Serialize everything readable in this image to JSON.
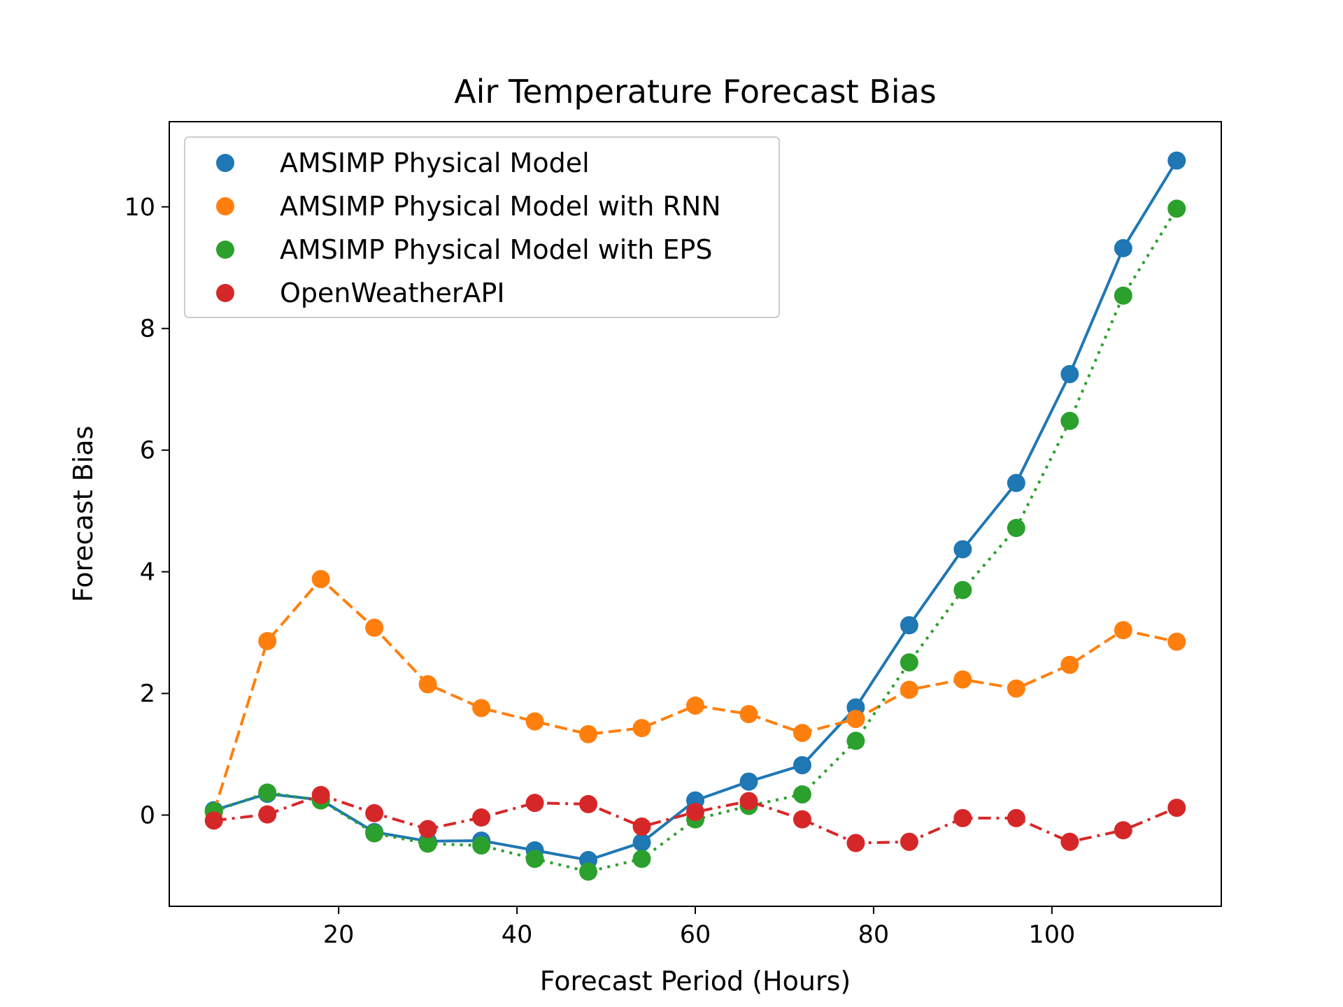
{
  "chart_data": {
    "type": "line",
    "title": "Air Temperature Forecast Bias",
    "xlabel": "Forecast Period (Hours)",
    "ylabel": "Forecast Bias",
    "xlim": [
      1,
      119
    ],
    "ylim": [
      -1.5,
      11.4
    ],
    "xticks": [
      20,
      40,
      60,
      80,
      100
    ],
    "yticks": [
      0,
      2,
      4,
      6,
      8,
      10
    ],
    "grid": false,
    "legend_position": "top-left",
    "x": [
      6,
      12,
      18,
      24,
      30,
      36,
      42,
      48,
      54,
      60,
      66,
      72,
      78,
      84,
      90,
      96,
      102,
      108,
      114
    ],
    "series": [
      {
        "name": "AMSIMP Physical Model",
        "color": "#1f77b4",
        "line_style": "solid",
        "values": [
          0.08,
          0.35,
          0.25,
          -0.28,
          -0.43,
          -0.42,
          -0.58,
          -0.74,
          -0.45,
          0.24,
          0.55,
          0.82,
          1.77,
          3.12,
          4.37,
          5.46,
          7.25,
          9.32,
          10.76
        ]
      },
      {
        "name": "AMSIMP Physical Model with RNN",
        "color": "#ff7f0e",
        "line_style": "dashed",
        "values": [
          0.05,
          2.86,
          3.88,
          3.08,
          2.15,
          1.76,
          1.54,
          1.33,
          1.43,
          1.8,
          1.66,
          1.35,
          1.58,
          2.06,
          2.23,
          2.08,
          2.47,
          3.04,
          2.85
        ]
      },
      {
        "name": "AMSIMP Physical Model with EPS",
        "color": "#2ca02c",
        "line_style": "dotted",
        "values": [
          0.06,
          0.37,
          0.24,
          -0.3,
          -0.47,
          -0.5,
          -0.72,
          -0.93,
          -0.72,
          -0.07,
          0.15,
          0.34,
          1.22,
          2.51,
          3.7,
          4.72,
          6.48,
          8.54,
          9.97
        ]
      },
      {
        "name": "OpenWeatherAPI",
        "color": "#d62728",
        "line_style": "dashdot",
        "values": [
          -0.09,
          0.01,
          0.33,
          0.03,
          -0.23,
          -0.04,
          0.2,
          0.18,
          -0.19,
          0.05,
          0.23,
          -0.07,
          -0.46,
          -0.44,
          -0.05,
          -0.05,
          -0.44,
          -0.25,
          0.12
        ]
      }
    ]
  }
}
